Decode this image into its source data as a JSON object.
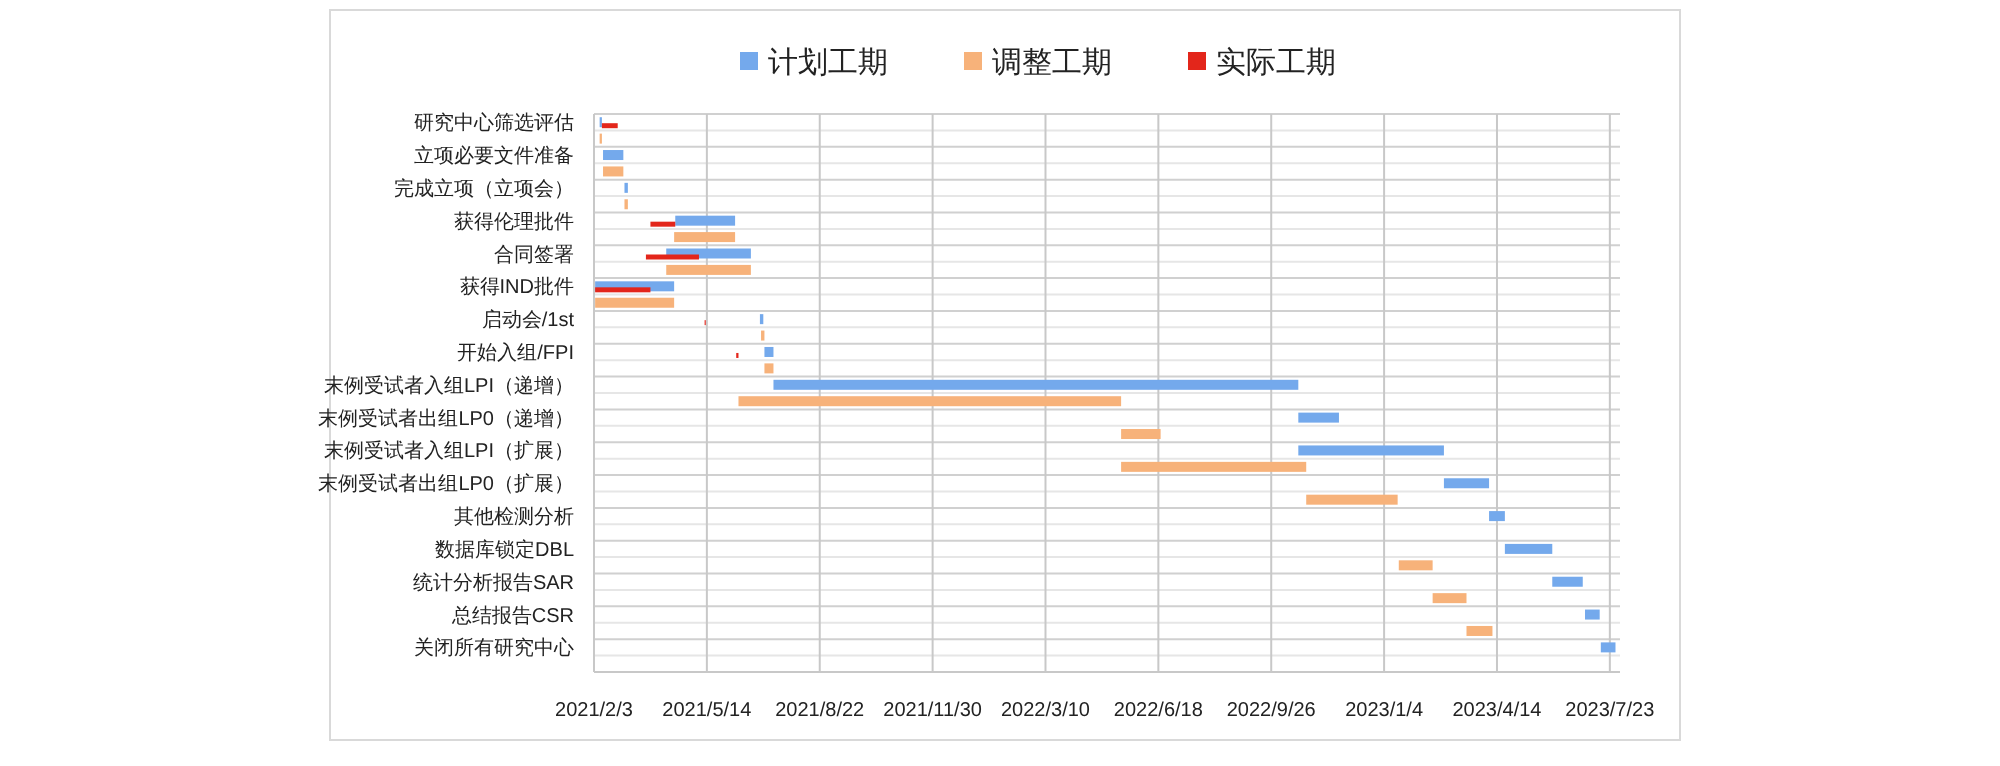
{
  "chart_data": {
    "type": "bar",
    "orientation": "horizontal",
    "legend": "top",
    "grid": true,
    "categories": [
      "研究中心筛选评估",
      "立项必要文件准备",
      "完成立项（立项会）",
      "获得伦理批件",
      "合同签署",
      "获得IND批件",
      "启动会/1st",
      "开始入组/FPI",
      "末例受试者入组LPI（递增）",
      "末例受试者出组LP0（递增）",
      "末例受试者入组LPI（扩展）",
      "末例受试者出组LP0（扩展）",
      "其他检测分析",
      "数据库锁定DBL",
      "统计分析报告SAR",
      "总结报告CSR",
      "关闭所有研究中心"
    ],
    "xlim": [
      "2021-02-03",
      "2023-08-01"
    ],
    "xticks": [
      {
        "value": "2021-02-03",
        "label": "2021/2/3"
      },
      {
        "value": "2021-05-14",
        "label": "2021/5/14"
      },
      {
        "value": "2021-08-22",
        "label": "2021/8/22"
      },
      {
        "value": "2021-11-30",
        "label": "2021/11/30"
      },
      {
        "value": "2022-03-10",
        "label": "2022/3/10"
      },
      {
        "value": "2022-06-18",
        "label": "2022/6/18"
      },
      {
        "value": "2022-09-26",
        "label": "2022/9/26"
      },
      {
        "value": "2023-01-04",
        "label": "2023/1/4"
      },
      {
        "value": "2023-04-14",
        "label": "2023/4/14"
      },
      {
        "value": "2023-07-23",
        "label": "2023/7/23"
      }
    ],
    "series": [
      {
        "name": "计划工期",
        "color": "#74a9ec",
        "base": [
          18666,
          18669,
          18688,
          18733,
          18725,
          18662,
          18808,
          18812,
          18820,
          19285,
          19285,
          19414,
          19454,
          19468,
          19510,
          19539,
          19553
        ],
        "values": [
          2,
          18,
          3,
          53,
          75,
          70,
          3,
          8,
          465,
          36,
          129,
          40,
          14,
          42,
          27,
          13,
          13
        ]
      },
      {
        "name": "调整工期",
        "color": "#f7b27a",
        "base": [
          18666,
          18669,
          18688,
          18732,
          18725,
          18662,
          18809,
          18812,
          18789,
          19128,
          19128,
          19292,
          null,
          19374,
          19404,
          19434,
          null
        ],
        "values": [
          2,
          18,
          3,
          54,
          75,
          70,
          3,
          8,
          339,
          35,
          164,
          81,
          null,
          30,
          30,
          23,
          null
        ]
      },
      {
        "name": "实际工期",
        "color": "#e3261b",
        "base": [
          18668,
          null,
          null,
          18711,
          18707,
          18662,
          18759,
          18787,
          null,
          null,
          null,
          null,
          null,
          null,
          null,
          null,
          null
        ],
        "values": [
          14,
          null,
          null,
          22,
          47,
          49,
          1,
          2,
          null,
          null,
          null,
          null,
          null,
          null,
          null,
          null,
          null
        ]
      }
    ]
  }
}
